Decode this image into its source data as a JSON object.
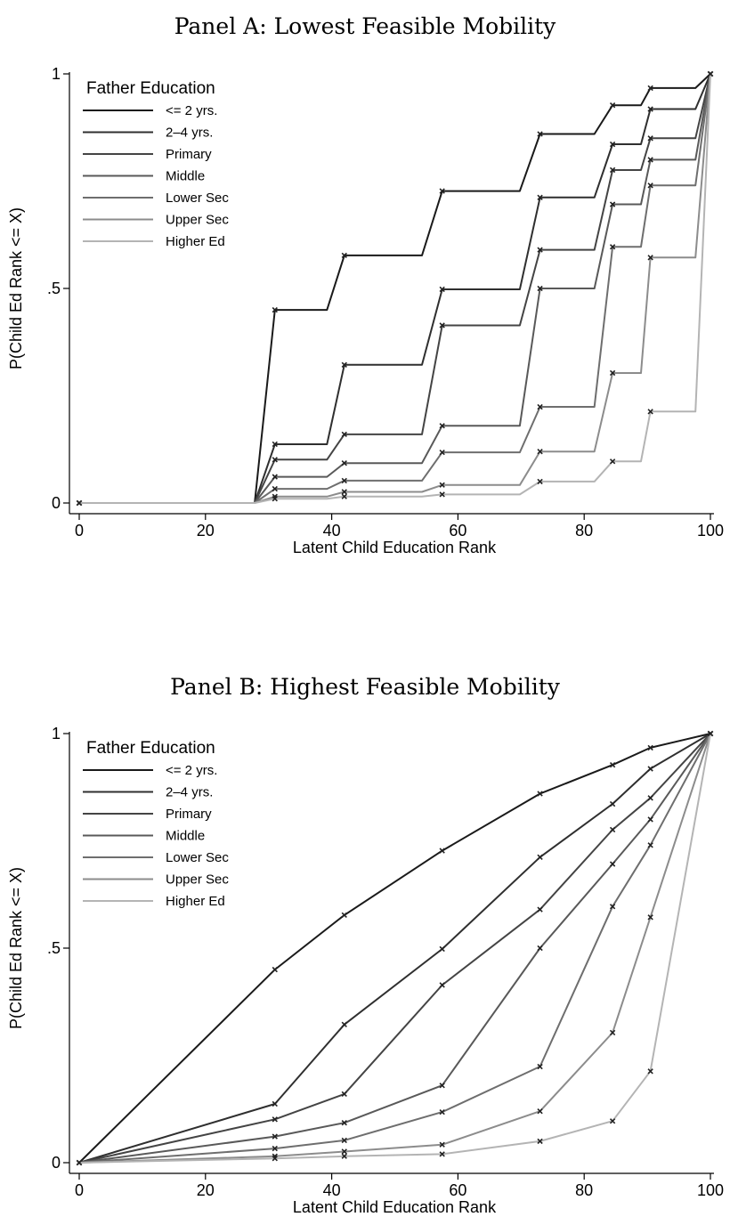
{
  "chart_data": [
    {
      "type": "line",
      "step": true,
      "title": "Panel A: Lowest Feasible Mobility",
      "xlabel": "Latent Child Education Rank",
      "ylabel": "P(Child Ed Rank <= X)",
      "xlim": [
        0,
        100
      ],
      "ylim": [
        0,
        1
      ],
      "xticks": [
        0,
        20,
        40,
        60,
        80,
        100
      ],
      "yticks": [
        0,
        0.5,
        1
      ],
      "ytick_labels": [
        "0",
        ".5",
        "1"
      ],
      "grid": false,
      "legend": {
        "title": "Father Education",
        "placement": "top-left"
      },
      "x": [
        0,
        31,
        42,
        57.5,
        73,
        84.5,
        90.5,
        100
      ],
      "series": [
        {
          "name": "<= 2 yrs.",
          "color": "#1a1a1a",
          "values": [
            0,
            0.45,
            0.577,
            0.727,
            0.86,
            0.927,
            0.967,
            1
          ]
        },
        {
          "name": "2–4 yrs.",
          "color": "#2f2f2f",
          "values": [
            0,
            0.137,
            0.322,
            0.498,
            0.712,
            0.836,
            0.918,
            1
          ]
        },
        {
          "name": "Primary",
          "color": "#444444",
          "values": [
            0,
            0.101,
            0.16,
            0.414,
            0.59,
            0.776,
            0.85,
            1
          ]
        },
        {
          "name": "Middle",
          "color": "#595959",
          "values": [
            0,
            0.061,
            0.093,
            0.18,
            0.5,
            0.696,
            0.8,
            1
          ]
        },
        {
          "name": "Lower Sec",
          "color": "#6e6e6e",
          "values": [
            0,
            0.033,
            0.052,
            0.118,
            0.224,
            0.597,
            0.74,
            1
          ]
        },
        {
          "name": "Upper Sec",
          "color": "#8c8c8c",
          "values": [
            0,
            0.015,
            0.026,
            0.042,
            0.12,
            0.303,
            0.572,
            1
          ]
        },
        {
          "name": "Higher Ed",
          "color": "#b4b4b4",
          "values": [
            0,
            0.01,
            0.015,
            0.02,
            0.05,
            0.097,
            0.213,
            1
          ]
        }
      ]
    },
    {
      "type": "line",
      "step": false,
      "title": "Panel B: Highest Feasible Mobility",
      "xlabel": "Latent Child Education Rank",
      "ylabel": "P(Child Ed Rank <= X)",
      "xlim": [
        0,
        100
      ],
      "ylim": [
        0,
        1
      ],
      "xticks": [
        0,
        20,
        40,
        60,
        80,
        100
      ],
      "yticks": [
        0,
        0.5,
        1
      ],
      "ytick_labels": [
        "0",
        ".5",
        "1"
      ],
      "grid": false,
      "legend": {
        "title": "Father Education",
        "placement": "top-left"
      },
      "x": [
        0,
        31,
        42,
        57.5,
        73,
        84.5,
        90.5,
        100
      ],
      "series": [
        {
          "name": "<= 2 yrs.",
          "color": "#1a1a1a",
          "values": [
            0,
            0.45,
            0.577,
            0.727,
            0.86,
            0.927,
            0.967,
            1
          ]
        },
        {
          "name": "2–4 yrs.",
          "color": "#2f2f2f",
          "values": [
            0,
            0.137,
            0.322,
            0.498,
            0.712,
            0.836,
            0.918,
            1
          ]
        },
        {
          "name": "Primary",
          "color": "#444444",
          "values": [
            0,
            0.101,
            0.16,
            0.414,
            0.59,
            0.776,
            0.85,
            1
          ]
        },
        {
          "name": "Middle",
          "color": "#595959",
          "values": [
            0,
            0.061,
            0.093,
            0.18,
            0.5,
            0.696,
            0.8,
            1
          ]
        },
        {
          "name": "Lower Sec",
          "color": "#6e6e6e",
          "values": [
            0,
            0.033,
            0.052,
            0.118,
            0.224,
            0.597,
            0.74,
            1
          ]
        },
        {
          "name": "Upper Sec",
          "color": "#8c8c8c",
          "values": [
            0,
            0.015,
            0.026,
            0.042,
            0.12,
            0.303,
            0.572,
            1
          ]
        },
        {
          "name": "Higher Ed",
          "color": "#b4b4b4",
          "values": [
            0,
            0.01,
            0.015,
            0.02,
            0.05,
            0.097,
            0.213,
            1
          ]
        }
      ]
    }
  ]
}
